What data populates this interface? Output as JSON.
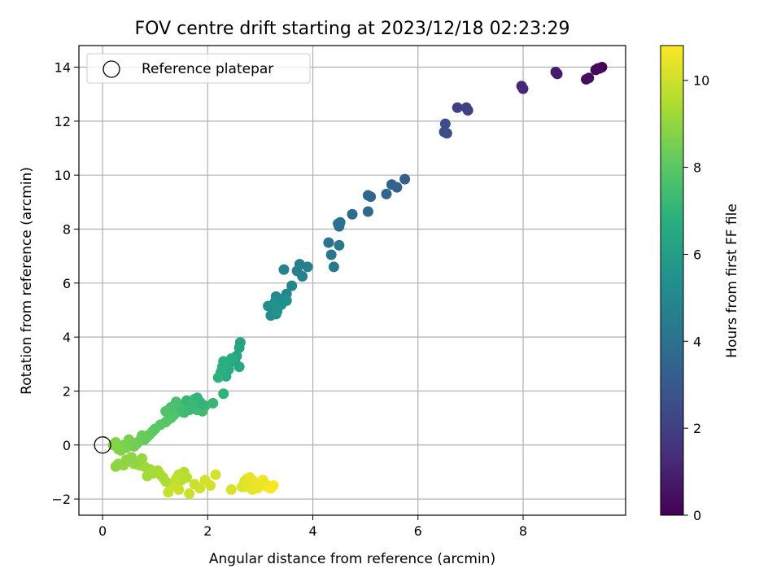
{
  "chart_data": {
    "type": "scatter",
    "title": "FOV centre drift starting at 2023/12/18 02:23:29",
    "xlabel": "Angular distance from reference (arcmin)",
    "ylabel": "Rotation from reference (arcmin)",
    "xlim": [
      -0.45,
      9.95
    ],
    "ylim": [
      -2.6,
      14.8
    ],
    "xticks": [
      0,
      2,
      4,
      6,
      8
    ],
    "yticks": [
      -2,
      0,
      2,
      4,
      6,
      8,
      10,
      12,
      14
    ],
    "grid": true,
    "legend": {
      "placement": "top-left",
      "entries": [
        "Reference platepar"
      ]
    },
    "reference_point": {
      "x": 0,
      "y": 0
    },
    "colorbar": {
      "label": "Hours from first FF file",
      "range": [
        0,
        10.8
      ],
      "ticks": [
        0,
        2,
        4,
        6,
        8,
        10
      ],
      "colormap": "viridis"
    },
    "series": [
      {
        "x": [
          9.45,
          9.5,
          9.38,
          9.42,
          9.2,
          9.25,
          8.65,
          8.62,
          8.0,
          7.97,
          6.92,
          6.75,
          6.95,
          6.5,
          6.55,
          6.52,
          5.75,
          5.6,
          5.5,
          5.4,
          5.1,
          5.05,
          5.05,
          4.75,
          4.52,
          4.5,
          4.48,
          4.3,
          4.35,
          4.5,
          4.4,
          3.9,
          3.75,
          3.7,
          3.8,
          3.45,
          3.6,
          3.5,
          3.38,
          3.3,
          3.25,
          3.2,
          3.15,
          3.3,
          3.4,
          3.5,
          3.28,
          3.32,
          2.62,
          2.6,
          2.55,
          2.52,
          2.6,
          2.45,
          2.38,
          2.4,
          2.35,
          2.45,
          2.3,
          2.28,
          2.25,
          2.2,
          2.3,
          2.1,
          1.95,
          1.85,
          1.8,
          1.9,
          1.75,
          1.7,
          1.55,
          1.5,
          1.45,
          1.4,
          1.35,
          1.3,
          1.25,
          1.2,
          1.1,
          1.0,
          0.95,
          0.9,
          0.85,
          0.8,
          0.75,
          0.7,
          0.65,
          0.6,
          0.55,
          0.5,
          0.45,
          0.4,
          0.35,
          0.3,
          0.25,
          0.2,
          1.55,
          1.6,
          1.5,
          1.45,
          1.4,
          1.35,
          1.3,
          1.2,
          1.15,
          1.1,
          1.0,
          0.9,
          0.8,
          0.7,
          0.6,
          0.5,
          0.4,
          0.3,
          0.25,
          0.85,
          0.95,
          0.45,
          0.55,
          0.65,
          0.75,
          1.05,
          1.25,
          1.45,
          1.65,
          1.85,
          2.05,
          2.15,
          1.75,
          1.95,
          2.45,
          2.65,
          2.8,
          2.85,
          2.9,
          2.95,
          3.0,
          3.05,
          3.1,
          3.15,
          3.2,
          3.25,
          2.75,
          2.7,
          1.8,
          1.6,
          1.5,
          1.4,
          1.3,
          1.2,
          1.7,
          1.9,
          1.55,
          1.65,
          2.85,
          2.9,
          2.7,
          2.75,
          3.1,
          3.15,
          3.2,
          3.05,
          2.95,
          2.8
        ],
        "y": [
          13.95,
          14.0,
          13.9,
          13.95,
          13.55,
          13.6,
          13.75,
          13.82,
          13.2,
          13.3,
          12.5,
          12.5,
          12.4,
          11.6,
          11.55,
          11.9,
          9.85,
          9.55,
          9.65,
          9.3,
          9.2,
          9.25,
          8.65,
          8.55,
          8.25,
          8.1,
          8.2,
          7.5,
          7.05,
          7.4,
          6.6,
          6.6,
          6.7,
          6.45,
          6.25,
          6.5,
          5.9,
          5.6,
          5.4,
          5.5,
          5.1,
          4.8,
          5.15,
          4.85,
          5.2,
          5.35,
          5.3,
          4.95,
          3.8,
          3.6,
          3.3,
          3.1,
          2.9,
          3.15,
          3.05,
          2.8,
          2.55,
          3.2,
          3.1,
          2.9,
          2.7,
          2.5,
          1.9,
          1.55,
          1.45,
          1.6,
          1.3,
          1.25,
          1.7,
          1.6,
          1.5,
          1.4,
          1.3,
          1.2,
          1.1,
          1.0,
          0.95,
          0.85,
          0.75,
          0.6,
          0.5,
          0.4,
          0.3,
          0.2,
          0.35,
          0.15,
          0.05,
          -0.05,
          0.1,
          0.2,
          -0.1,
          0.0,
          -0.2,
          -0.15,
          0.1,
          0.0,
          -1.0,
          -1.2,
          -1.3,
          -1.1,
          -1.25,
          -1.4,
          -1.5,
          -1.35,
          -1.2,
          -1.1,
          -1.0,
          -0.9,
          -0.8,
          -0.75,
          -0.7,
          -0.6,
          -0.75,
          -0.7,
          -0.8,
          -1.15,
          -1.05,
          -0.55,
          -0.45,
          -0.65,
          -0.5,
          -0.95,
          -1.75,
          -1.65,
          -1.8,
          -1.6,
          -1.5,
          -1.1,
          -1.45,
          -1.3,
          -1.65,
          -1.55,
          -1.4,
          -1.3,
          -1.5,
          -1.6,
          -1.45,
          -1.35,
          -1.5,
          -1.55,
          -1.6,
          -1.5,
          -1.25,
          -1.35,
          1.75,
          1.65,
          1.35,
          1.6,
          1.4,
          1.25,
          1.5,
          1.5,
          1.2,
          1.3,
          -1.65,
          -1.4,
          -1.55,
          -1.5,
          -1.45,
          -1.55,
          -1.6,
          -1.3,
          -1.5,
          -1.2
        ],
        "c": [
          0.1,
          0.15,
          0.2,
          0.25,
          0.35,
          0.4,
          0.8,
          0.85,
          1.2,
          1.25,
          2.0,
          2.05,
          2.1,
          2.5,
          2.55,
          2.6,
          3.3,
          3.35,
          3.4,
          3.5,
          3.6,
          3.65,
          3.7,
          3.85,
          3.95,
          4.0,
          4.05,
          4.2,
          4.25,
          4.3,
          4.35,
          4.6,
          4.65,
          4.7,
          4.75,
          4.85,
          4.9,
          5.0,
          5.05,
          5.1,
          5.15,
          5.2,
          5.25,
          5.3,
          5.35,
          5.4,
          5.45,
          5.5,
          6.3,
          6.35,
          6.4,
          6.45,
          6.5,
          6.55,
          6.6,
          6.65,
          6.7,
          6.75,
          6.8,
          6.85,
          6.9,
          6.95,
          7.0,
          7.2,
          7.3,
          7.35,
          7.4,
          7.45,
          7.5,
          7.55,
          7.6,
          7.65,
          7.7,
          7.75,
          7.8,
          7.85,
          7.9,
          7.95,
          8.0,
          8.05,
          8.1,
          8.15,
          8.2,
          8.25,
          8.3,
          8.35,
          8.4,
          8.45,
          8.5,
          8.55,
          8.6,
          8.65,
          8.7,
          8.75,
          8.8,
          8.85,
          9.6,
          9.65,
          9.7,
          9.75,
          9.8,
          9.85,
          9.9,
          9.5,
          9.45,
          9.4,
          9.35,
          9.3,
          9.25,
          9.2,
          9.15,
          9.1,
          9.05,
          9.0,
          8.95,
          9.3,
          9.35,
          8.9,
          8.95,
          9.0,
          9.1,
          9.4,
          9.9,
          9.95,
          10.0,
          10.05,
          10.1,
          10.15,
          10.0,
          10.1,
          10.2,
          10.3,
          10.4,
          10.5,
          10.55,
          10.6,
          10.65,
          10.7,
          10.72,
          10.74,
          10.76,
          10.78,
          10.35,
          10.3,
          7.1,
          7.15,
          7.5,
          7.6,
          7.7,
          7.8,
          7.25,
          7.05,
          7.4,
          7.3,
          10.45,
          10.5,
          10.25,
          10.4,
          10.6,
          10.65,
          10.7,
          10.55,
          10.5,
          10.45
        ]
      }
    ]
  }
}
